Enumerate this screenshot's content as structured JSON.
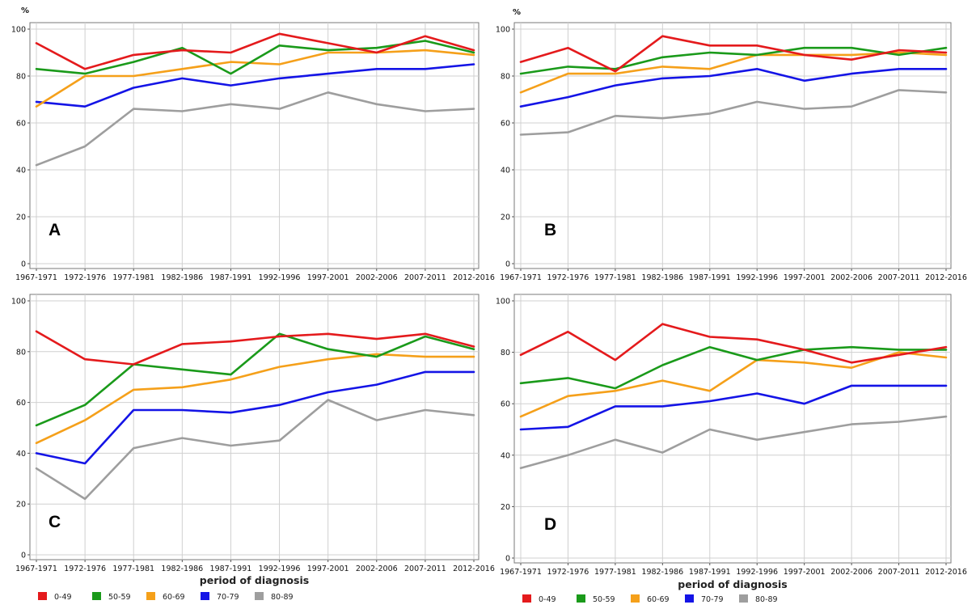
{
  "chart_data": [
    {
      "type": "line",
      "panel_label": "A",
      "ylabel": "%",
      "xlabel": "",
      "ylim": [
        0,
        100
      ],
      "yticks": [
        0,
        20,
        40,
        60,
        80,
        100
      ],
      "grid": true,
      "categories": [
        "1967-1971",
        "1972-1976",
        "1977-1981",
        "1982-1986",
        "1987-1991",
        "1992-1996",
        "1997-2001",
        "2002-2006",
        "2007-2011",
        "2012-2016"
      ],
      "series": [
        {
          "name": "0-49",
          "color": "#e41a1c",
          "values": [
            94,
            83,
            89,
            91,
            90,
            98,
            94,
            90,
            97,
            91
          ]
        },
        {
          "name": "50-59",
          "color": "#1a9a1a",
          "values": [
            83,
            81,
            86,
            92,
            81,
            93,
            91,
            92,
            95,
            90
          ]
        },
        {
          "name": "60-69",
          "color": "#f5a01a",
          "values": [
            67,
            80,
            80,
            83,
            86,
            85,
            90,
            90,
            91,
            89
          ]
        },
        {
          "name": "70-79",
          "color": "#1414e6",
          "values": [
            69,
            67,
            75,
            79,
            76,
            79,
            81,
            83,
            83,
            85
          ]
        },
        {
          "name": "80-89",
          "color": "#9e9e9e",
          "values": [
            42,
            50,
            66,
            65,
            68,
            66,
            73,
            68,
            65,
            66
          ]
        }
      ]
    },
    {
      "type": "line",
      "panel_label": "B",
      "ylabel": "%",
      "xlabel": "",
      "ylim": [
        0,
        100
      ],
      "yticks": [
        0,
        20,
        40,
        60,
        80,
        100
      ],
      "grid": true,
      "categories": [
        "1967-1971",
        "1972-1976",
        "1977-1981",
        "1982-1986",
        "1987-1991",
        "1992-1996",
        "1997-2001",
        "2002-2006",
        "2007-2011",
        "2012-2016"
      ],
      "series": [
        {
          "name": "0-49",
          "color": "#e41a1c",
          "values": [
            86,
            92,
            82,
            97,
            93,
            93,
            89,
            87,
            91,
            90
          ]
        },
        {
          "name": "50-59",
          "color": "#1a9a1a",
          "values": [
            81,
            84,
            83,
            88,
            90,
            89,
            92,
            92,
            89,
            92
          ]
        },
        {
          "name": "60-69",
          "color": "#f5a01a",
          "values": [
            73,
            81,
            81,
            84,
            83,
            89,
            89,
            89,
            90,
            89
          ]
        },
        {
          "name": "70-79",
          "color": "#1414e6",
          "values": [
            67,
            71,
            76,
            79,
            80,
            83,
            78,
            81,
            83,
            83
          ]
        },
        {
          "name": "80-89",
          "color": "#9e9e9e",
          "values": [
            55,
            56,
            63,
            62,
            64,
            69,
            66,
            67,
            74,
            73
          ]
        }
      ]
    },
    {
      "type": "line",
      "panel_label": "C",
      "ylabel": "",
      "xlabel": "period of diagnosis",
      "ylim": [
        0,
        100
      ],
      "yticks": [
        0,
        20,
        40,
        60,
        80,
        100
      ],
      "grid": true,
      "categories": [
        "1967-1971",
        "1972-1976",
        "1977-1981",
        "1982-1986",
        "1987-1991",
        "1992-1996",
        "1997-2001",
        "2002-2006",
        "2007-2011",
        "2012-2016"
      ],
      "series": [
        {
          "name": "0-49",
          "color": "#e41a1c",
          "values": [
            88,
            77,
            75,
            83,
            84,
            86,
            87,
            85,
            87,
            82
          ]
        },
        {
          "name": "50-59",
          "color": "#1a9a1a",
          "values": [
            51,
            59,
            75,
            73,
            71,
            87,
            81,
            78,
            86,
            81
          ]
        },
        {
          "name": "60-69",
          "color": "#f5a01a",
          "values": [
            44,
            53,
            65,
            66,
            69,
            74,
            77,
            79,
            78,
            78
          ]
        },
        {
          "name": "70-79",
          "color": "#1414e6",
          "values": [
            40,
            36,
            57,
            57,
            56,
            59,
            64,
            67,
            72,
            72
          ]
        },
        {
          "name": "80-89",
          "color": "#9e9e9e",
          "values": [
            34,
            22,
            42,
            46,
            43,
            45,
            61,
            53,
            57,
            55
          ]
        }
      ]
    },
    {
      "type": "line",
      "panel_label": "D",
      "ylabel": "",
      "xlabel": "period of diagnosis",
      "ylim": [
        0,
        100
      ],
      "yticks": [
        0,
        20,
        40,
        60,
        80,
        100
      ],
      "grid": true,
      "categories": [
        "1967-1971",
        "1972-1976",
        "1977-1981",
        "1982-1986",
        "1987-1991",
        "1992-1996",
        "1997-2001",
        "2002-2006",
        "2007-2011",
        "2012-2016"
      ],
      "series": [
        {
          "name": "0-49",
          "color": "#e41a1c",
          "values": [
            79,
            88,
            77,
            91,
            86,
            85,
            81,
            76,
            79,
            82
          ]
        },
        {
          "name": "50-59",
          "color": "#1a9a1a",
          "values": [
            68,
            70,
            66,
            75,
            82,
            77,
            81,
            82,
            81,
            81
          ]
        },
        {
          "name": "60-69",
          "color": "#f5a01a",
          "values": [
            55,
            63,
            65,
            69,
            65,
            77,
            76,
            74,
            80,
            78
          ]
        },
        {
          "name": "70-79",
          "color": "#1414e6",
          "values": [
            50,
            51,
            59,
            59,
            61,
            64,
            60,
            67,
            67,
            67
          ]
        },
        {
          "name": "80-89",
          "color": "#9e9e9e",
          "values": [
            35,
            40,
            46,
            41,
            50,
            46,
            49,
            52,
            53,
            55
          ]
        }
      ]
    }
  ]
}
